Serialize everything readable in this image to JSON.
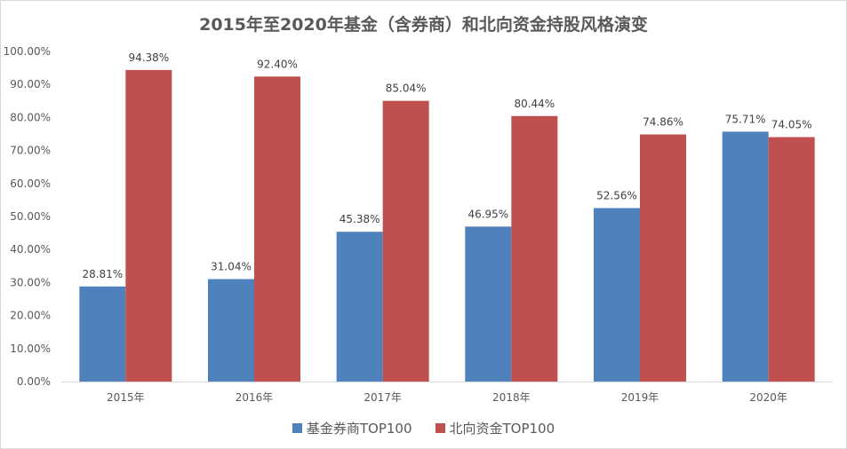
{
  "chart_data": {
    "type": "bar",
    "title": "2015年至2020年基金（含券商）和北向资金持股风格演变",
    "categories": [
      "2015年",
      "2016年",
      "2017年",
      "2018年",
      "2019年",
      "2020年"
    ],
    "series": [
      {
        "name": "基金券商TOP100",
        "color": "#4f81bd",
        "values": [
          28.81,
          31.04,
          45.38,
          46.95,
          52.56,
          75.71
        ],
        "labels": [
          "28.81%",
          "31.04%",
          "45.38%",
          "46.95%",
          "52.56%",
          "75.71%"
        ]
      },
      {
        "name": "北向资金TOP100",
        "color": "#c0504d",
        "values": [
          94.38,
          92.4,
          85.04,
          80.44,
          74.86,
          74.05
        ],
        "labels": [
          "94.38%",
          "92.40%",
          "85.04%",
          "80.44%",
          "74.86%",
          "74.05%"
        ]
      }
    ],
    "ylim": [
      0,
      100
    ],
    "yticks": [
      "0.00%",
      "10.00%",
      "20.00%",
      "30.00%",
      "40.00%",
      "50.00%",
      "60.00%",
      "70.00%",
      "80.00%",
      "90.00%",
      "100.00%"
    ],
    "grid": false,
    "legend_position": "bottom"
  }
}
